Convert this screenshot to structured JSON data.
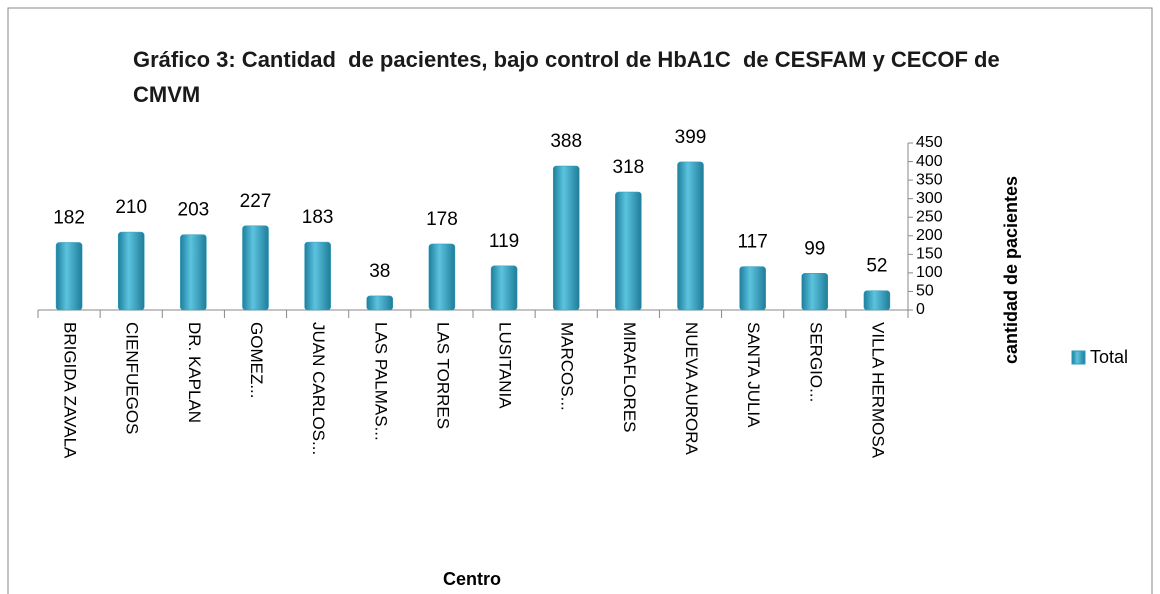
{
  "chart_data": {
    "type": "bar",
    "title": "Gráfico 3: Cantidad  de pacientes, bajo control de HbA1C  de CESFAM y CECOF de CMVM",
    "x_label": "Centro",
    "y_label": "cantidad de pacientes",
    "categories": [
      "BRIGIDA ZAVALA",
      "CIENFUEGOS",
      "DR. KAPLAN",
      "GOMEZ...",
      "JUAN CARLOS...",
      "LAS PALMAS...",
      "LAS TORRES",
      "LUSITANIA",
      "MARCOS...",
      "MIRAFLORES",
      "NUEVA AURORA",
      "SANTA JULIA",
      "SERGIO...",
      "VILLA HERMOSA"
    ],
    "series": [
      {
        "name": "Total",
        "color": "#2e9bbd",
        "values": [
          182,
          210,
          203,
          227,
          183,
          38,
          178,
          119,
          388,
          318,
          399,
          117,
          99,
          52
        ]
      }
    ],
    "ylim": [
      0,
      450
    ],
    "yticks": [
      0,
      50,
      100,
      150,
      200,
      250,
      300,
      350,
      400,
      450
    ],
    "legend": "right"
  }
}
